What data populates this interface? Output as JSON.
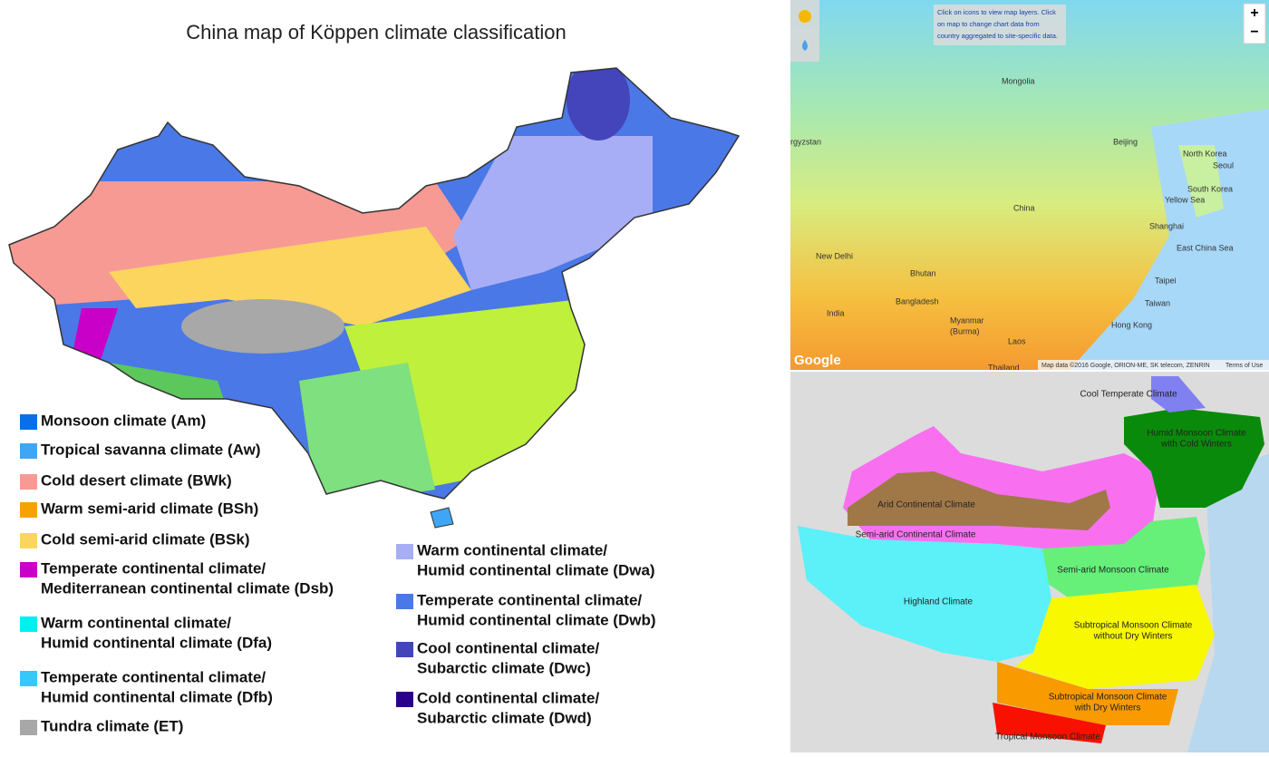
{
  "left_map": {
    "title": "China map of Köppen climate classification",
    "legend": [
      {
        "lines": [
          "Monsoon climate (Am)"
        ],
        "color": "#0a6ee8"
      },
      {
        "lines": [
          "Tropical savanna climate (Aw)"
        ],
        "color": "#3fa6f5"
      },
      {
        "lines": [
          "Cold desert climate (BWk)"
        ],
        "color": "#f79a93"
      },
      {
        "lines": [
          "Warm semi-arid climate (BSh)"
        ],
        "color": "#f5a300"
      },
      {
        "lines": [
          "Cold semi-arid climate (BSk)"
        ],
        "color": "#fbd55e"
      },
      {
        "lines": [
          "Temperate continental climate/",
          "Mediterranean continental climate (Dsb)"
        ],
        "color": "#c800c8"
      },
      {
        "lines": [
          "Warm continental climate/",
          "Humid continental climate (Dfa)"
        ],
        "color": "#00f0f0"
      },
      {
        "lines": [
          "Temperate continental climate/",
          "Humid continental climate (Dfb)"
        ],
        "color": "#38c8f8"
      },
      {
        "lines": [
          "Tundra climate (ET)"
        ],
        "color": "#a8a8a8"
      },
      {
        "lines": [
          "Warm continental climate/",
          "Humid continental climate (Dwa)"
        ],
        "color": "#a8aef5"
      },
      {
        "lines": [
          "Temperate continental climate/",
          "Humid continental climate (Dwb)"
        ],
        "color": "#4a78e6"
      },
      {
        "lines": [
          "Cool continental climate/",
          "Subarctic climate (Dwc)"
        ],
        "color": "#4444bb"
      },
      {
        "lines": [
          "Cold continental climate/",
          "Subarctic climate (Dwd)"
        ],
        "color": "#2a008a"
      }
    ]
  },
  "top_right_map": {
    "info": [
      "Click on icons to view map layers. Click",
      "on map to change chart data from",
      "country aggregated to site-specific data."
    ],
    "zoom_in": "+",
    "zoom_out": "−",
    "labels": [
      "Mongolia",
      "China",
      "North Korea",
      "Seoul",
      "South Korea",
      "Beijing",
      "Yellow Sea",
      "Shanghai",
      "East China Sea",
      "Taipei",
      "Taiwan",
      "Hong Kong",
      "New Delhi",
      "Bhutan",
      "Bangladesh",
      "India",
      "Myanmar",
      "(Burma)",
      "Laos",
      "Thailand",
      "rgyzstan"
    ],
    "logo": "Google",
    "attribution": "Map data ©2016 Google, ORION-ME, SK telecom, ZENRIN",
    "terms": "Terms of Use"
  },
  "bottom_right_map": {
    "labels": [
      {
        "lines": [
          "Cool Temperate Climate"
        ]
      },
      {
        "lines": [
          "Humid Monsoon Climate",
          "with Cold Winters"
        ]
      },
      {
        "lines": [
          "Arid Continental Climate"
        ]
      },
      {
        "lines": [
          "Semi-arid Continental Climate"
        ]
      },
      {
        "lines": [
          "Semi-arid Monsoon Climate"
        ]
      },
      {
        "lines": [
          "Highland Climate"
        ]
      },
      {
        "lines": [
          "Subtropical Monsoon Climate",
          "without Dry Winters"
        ]
      },
      {
        "lines": [
          "Subtropical Monsoon Climate",
          "with Dry Winters"
        ]
      },
      {
        "lines": [
          "Tropical Monsoon Climate"
        ]
      }
    ]
  }
}
